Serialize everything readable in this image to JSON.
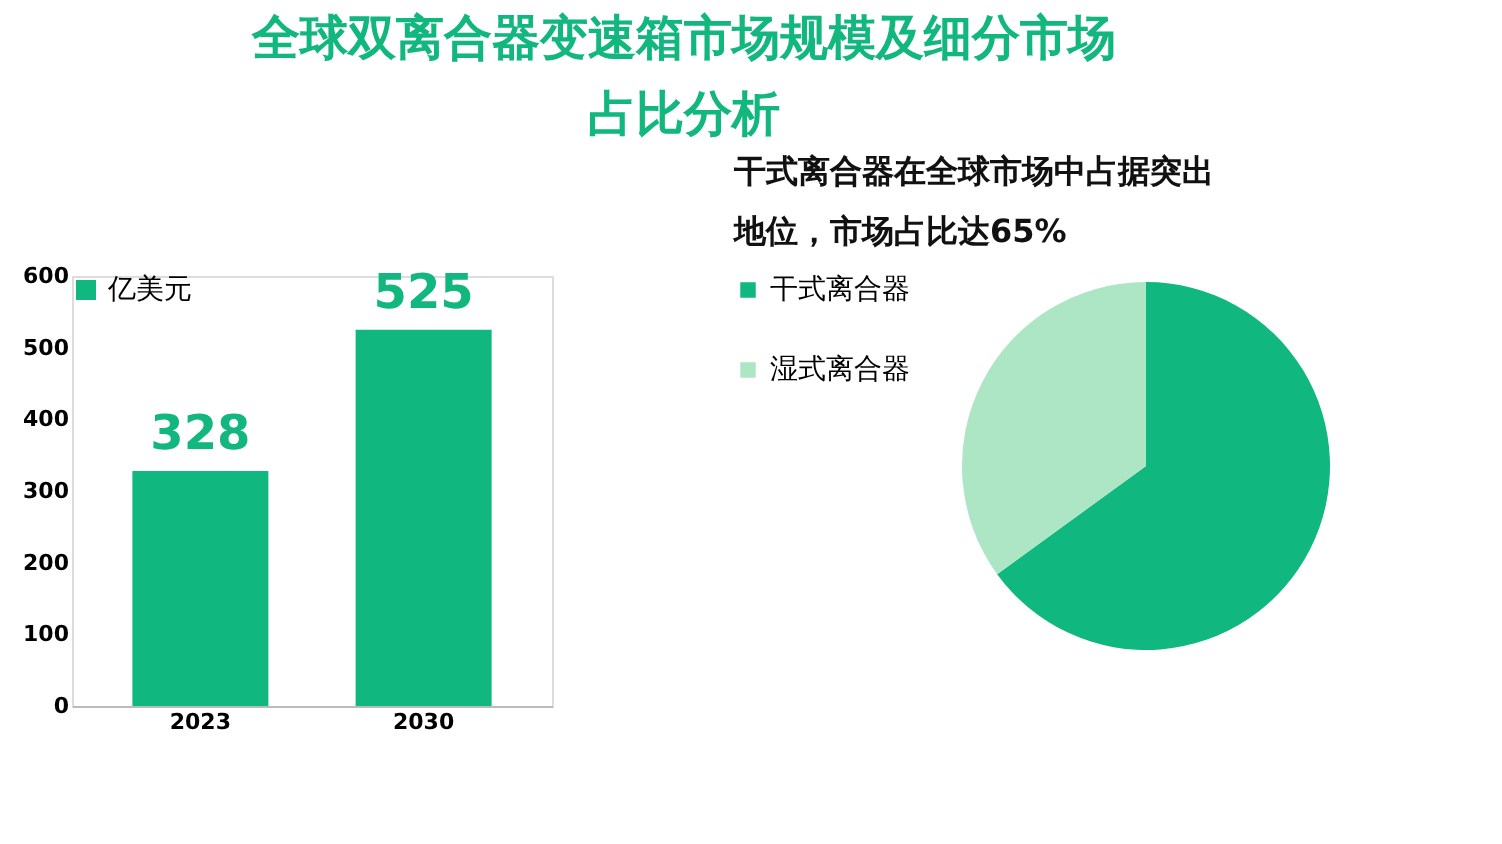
{
  "chart_data": [
    {
      "type": "bar",
      "title": "全球双离合器变速箱市场规模及细分市场占比分析",
      "categories": [
        "2023",
        "2030"
      ],
      "series": [
        {
          "name": "亿美元",
          "color": "#10b77f",
          "values": [
            328,
            525
          ]
        }
      ],
      "ylim": [
        0,
        600
      ],
      "yticks": [
        0,
        100,
        200,
        300,
        400,
        500,
        600
      ],
      "data_labels": true,
      "legend": "top left",
      "grid": false
    },
    {
      "type": "pie",
      "title": "干式离合器在全球市场中占据突出地位，市场占比达65%",
      "categories": [
        "干式离合器",
        "湿式离合器"
      ],
      "values": [
        65,
        35
      ],
      "colors": [
        "#10b77f",
        "#ade6c4"
      ],
      "legend": "left"
    }
  ]
}
